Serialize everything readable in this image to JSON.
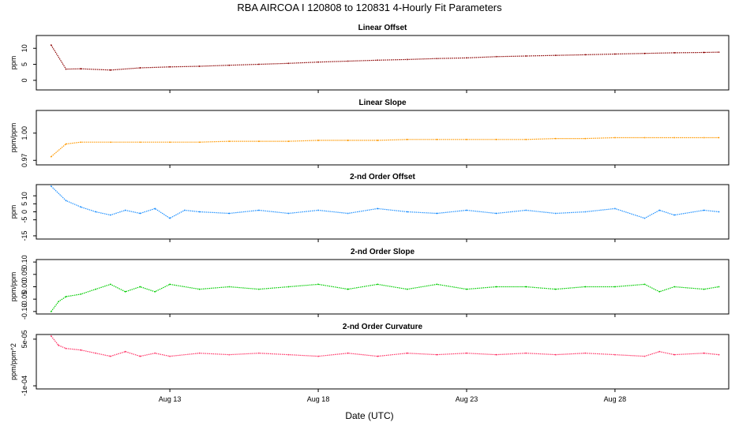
{
  "title": "RBA   AIRCOA I   120808 to 120831   4-Hourly Fit Parameters",
  "xlabel": "Date (UTC)",
  "chart_data": {
    "type": "line",
    "x_axis": {
      "ticks": [
        {
          "date": "2012-08-13",
          "label": "Aug 13"
        },
        {
          "date": "2012-08-18",
          "label": "Aug 18"
        },
        {
          "date": "2012-08-23",
          "label": "Aug 23"
        },
        {
          "date": "2012-08-28",
          "label": "Aug 28"
        }
      ],
      "range": [
        "2012-08-08T12:00",
        "2012-08-31T20:00"
      ]
    },
    "panels": [
      {
        "title": "Linear Offset",
        "ylabel": "ppm",
        "ylim": [
          -3,
          14
        ],
        "yticks": [
          0,
          5,
          10
        ],
        "yticklabels": [
          "0",
          "5",
          "10"
        ],
        "color": "#8b0000",
        "points": [
          [
            "2012-08-09T00:00",
            11.0
          ],
          [
            "2012-08-09T12:00",
            3.5
          ],
          [
            "2012-08-10T00:00",
            3.6
          ],
          [
            "2012-08-11T00:00",
            3.2
          ],
          [
            "2012-08-12T00:00",
            3.9
          ],
          [
            "2012-08-13T00:00",
            4.2
          ],
          [
            "2012-08-14T00:00",
            4.4
          ],
          [
            "2012-08-15T00:00",
            4.7
          ],
          [
            "2012-08-16T00:00",
            5.0
          ],
          [
            "2012-08-17T00:00",
            5.3
          ],
          [
            "2012-08-18T00:00",
            5.7
          ],
          [
            "2012-08-19T00:00",
            6.0
          ],
          [
            "2012-08-20T00:00",
            6.3
          ],
          [
            "2012-08-21T00:00",
            6.5
          ],
          [
            "2012-08-22T00:00",
            6.8
          ],
          [
            "2012-08-23T00:00",
            7.0
          ],
          [
            "2012-08-24T00:00",
            7.4
          ],
          [
            "2012-08-25T00:00",
            7.6
          ],
          [
            "2012-08-26T00:00",
            7.8
          ],
          [
            "2012-08-27T00:00",
            8.0
          ],
          [
            "2012-08-28T00:00",
            8.2
          ],
          [
            "2012-08-29T00:00",
            8.4
          ],
          [
            "2012-08-30T00:00",
            8.6
          ],
          [
            "2012-08-31T00:00",
            8.7
          ],
          [
            "2012-08-31T12:00",
            8.8
          ]
        ]
      },
      {
        "title": "Linear Slope",
        "ylabel": "ppm/ppm",
        "ylim": [
          0.965,
          1.025
        ],
        "yticks": [
          0.97,
          1.0
        ],
        "yticklabels": [
          "0.97",
          "1.00"
        ],
        "color": "#ff9900",
        "points": [
          [
            "2012-08-09T00:00",
            0.974
          ],
          [
            "2012-08-09T12:00",
            0.988
          ],
          [
            "2012-08-10T00:00",
            0.99
          ],
          [
            "2012-08-11T00:00",
            0.99
          ],
          [
            "2012-08-12T00:00",
            0.99
          ],
          [
            "2012-08-13T00:00",
            0.99
          ],
          [
            "2012-08-14T00:00",
            0.99
          ],
          [
            "2012-08-15T00:00",
            0.991
          ],
          [
            "2012-08-16T00:00",
            0.991
          ],
          [
            "2012-08-17T00:00",
            0.991
          ],
          [
            "2012-08-18T00:00",
            0.992
          ],
          [
            "2012-08-19T00:00",
            0.992
          ],
          [
            "2012-08-20T00:00",
            0.992
          ],
          [
            "2012-08-21T00:00",
            0.993
          ],
          [
            "2012-08-22T00:00",
            0.993
          ],
          [
            "2012-08-23T00:00",
            0.993
          ],
          [
            "2012-08-24T00:00",
            0.993
          ],
          [
            "2012-08-25T00:00",
            0.993
          ],
          [
            "2012-08-26T00:00",
            0.994
          ],
          [
            "2012-08-27T00:00",
            0.994
          ],
          [
            "2012-08-28T00:00",
            0.995
          ],
          [
            "2012-08-29T00:00",
            0.995
          ],
          [
            "2012-08-30T00:00",
            0.995
          ],
          [
            "2012-08-31T00:00",
            0.995
          ],
          [
            "2012-08-31T12:00",
            0.995
          ]
        ]
      },
      {
        "title": "2-nd Order Offset",
        "ylabel": "ppm",
        "ylim": [
          -17,
          17
        ],
        "yticks": [
          -15,
          -5,
          0,
          5,
          10
        ],
        "yticklabels": [
          "-15",
          "-5",
          "0",
          "5",
          "10"
        ],
        "color": "#1e90ff",
        "points": [
          [
            "2012-08-09T00:00",
            16.0
          ],
          [
            "2012-08-09T12:00",
            7.0
          ],
          [
            "2012-08-10T00:00",
            3.0
          ],
          [
            "2012-08-10T12:00",
            0.0
          ],
          [
            "2012-08-11T00:00",
            -2.0
          ],
          [
            "2012-08-11T12:00",
            1.0
          ],
          [
            "2012-08-12T00:00",
            -1.0
          ],
          [
            "2012-08-12T12:00",
            2.0
          ],
          [
            "2012-08-13T00:00",
            -4.0
          ],
          [
            "2012-08-13T12:00",
            1.0
          ],
          [
            "2012-08-14T00:00",
            0.0
          ],
          [
            "2012-08-15T00:00",
            -1.0
          ],
          [
            "2012-08-16T00:00",
            1.0
          ],
          [
            "2012-08-17T00:00",
            -1.0
          ],
          [
            "2012-08-18T00:00",
            1.0
          ],
          [
            "2012-08-19T00:00",
            -1.0
          ],
          [
            "2012-08-20T00:00",
            2.0
          ],
          [
            "2012-08-21T00:00",
            0.0
          ],
          [
            "2012-08-22T00:00",
            -1.0
          ],
          [
            "2012-08-23T00:00",
            1.0
          ],
          [
            "2012-08-24T00:00",
            -1.0
          ],
          [
            "2012-08-25T00:00",
            1.0
          ],
          [
            "2012-08-26T00:00",
            -1.0
          ],
          [
            "2012-08-27T00:00",
            0.0
          ],
          [
            "2012-08-28T00:00",
            2.0
          ],
          [
            "2012-08-29T00:00",
            -4.0
          ],
          [
            "2012-08-29T12:00",
            1.0
          ],
          [
            "2012-08-30T00:00",
            -2.0
          ],
          [
            "2012-08-31T00:00",
            1.0
          ],
          [
            "2012-08-31T12:00",
            0.0
          ]
        ]
      },
      {
        "title": "2-nd Order Slope",
        "ylabel": "ppm/ppm",
        "ylim": [
          -0.11,
          0.11
        ],
        "yticks": [
          -0.1,
          -0.05,
          0.0,
          0.05,
          0.1
        ],
        "yticklabels": [
          "-0.10",
          "-0.05",
          "0.00",
          "0.05",
          "0.10"
        ],
        "color": "#00cc00",
        "points": [
          [
            "2012-08-09T00:00",
            -0.1
          ],
          [
            "2012-08-09T06:00",
            -0.06
          ],
          [
            "2012-08-09T12:00",
            -0.04
          ],
          [
            "2012-08-10T00:00",
            -0.03
          ],
          [
            "2012-08-10T12:00",
            -0.01
          ],
          [
            "2012-08-11T00:00",
            0.01
          ],
          [
            "2012-08-11T12:00",
            -0.02
          ],
          [
            "2012-08-12T00:00",
            0.0
          ],
          [
            "2012-08-12T12:00",
            -0.02
          ],
          [
            "2012-08-13T00:00",
            0.01
          ],
          [
            "2012-08-14T00:00",
            -0.01
          ],
          [
            "2012-08-15T00:00",
            0.0
          ],
          [
            "2012-08-16T00:00",
            -0.01
          ],
          [
            "2012-08-17T00:00",
            0.0
          ],
          [
            "2012-08-18T00:00",
            0.01
          ],
          [
            "2012-08-19T00:00",
            -0.01
          ],
          [
            "2012-08-20T00:00",
            0.01
          ],
          [
            "2012-08-21T00:00",
            -0.01
          ],
          [
            "2012-08-22T00:00",
            0.01
          ],
          [
            "2012-08-23T00:00",
            -0.01
          ],
          [
            "2012-08-24T00:00",
            0.0
          ],
          [
            "2012-08-25T00:00",
            0.0
          ],
          [
            "2012-08-26T00:00",
            -0.01
          ],
          [
            "2012-08-27T00:00",
            0.0
          ],
          [
            "2012-08-28T00:00",
            0.0
          ],
          [
            "2012-08-29T00:00",
            0.01
          ],
          [
            "2012-08-29T12:00",
            -0.02
          ],
          [
            "2012-08-30T00:00",
            0.0
          ],
          [
            "2012-08-31T00:00",
            -0.01
          ],
          [
            "2012-08-31T12:00",
            0.0
          ]
        ]
      },
      {
        "title": "2-nd Order Curvature",
        "ylabel": "ppm/ppm^2",
        "ylim": [
          -0.00011,
          6.5e-05
        ],
        "yticks": [
          -0.0001,
          5e-05
        ],
        "yticklabels": [
          "-1e-04",
          "5e-05"
        ],
        "color": "#ff3366",
        "points": [
          [
            "2012-08-09T00:00",
            6e-05
          ],
          [
            "2012-08-09T06:00",
            3e-05
          ],
          [
            "2012-08-09T12:00",
            2e-05
          ],
          [
            "2012-08-10T00:00",
            1.5e-05
          ],
          [
            "2012-08-10T12:00",
            5e-06
          ],
          [
            "2012-08-11T00:00",
            -5e-06
          ],
          [
            "2012-08-11T12:00",
            1e-05
          ],
          [
            "2012-08-12T00:00",
            -5e-06
          ],
          [
            "2012-08-12T12:00",
            5e-06
          ],
          [
            "2012-08-13T00:00",
            -5e-06
          ],
          [
            "2012-08-14T00:00",
            5e-06
          ],
          [
            "2012-08-15T00:00",
            0.0
          ],
          [
            "2012-08-16T00:00",
            5e-06
          ],
          [
            "2012-08-17T00:00",
            0.0
          ],
          [
            "2012-08-18T00:00",
            -5e-06
          ],
          [
            "2012-08-19T00:00",
            5e-06
          ],
          [
            "2012-08-20T00:00",
            -5e-06
          ],
          [
            "2012-08-21T00:00",
            5e-06
          ],
          [
            "2012-08-22T00:00",
            0.0
          ],
          [
            "2012-08-23T00:00",
            5e-06
          ],
          [
            "2012-08-24T00:00",
            0.0
          ],
          [
            "2012-08-25T00:00",
            5e-06
          ],
          [
            "2012-08-26T00:00",
            0.0
          ],
          [
            "2012-08-27T00:00",
            5e-06
          ],
          [
            "2012-08-28T00:00",
            0.0
          ],
          [
            "2012-08-29T00:00",
            -5e-06
          ],
          [
            "2012-08-29T12:00",
            1e-05
          ],
          [
            "2012-08-30T00:00",
            0.0
          ],
          [
            "2012-08-31T00:00",
            5e-06
          ],
          [
            "2012-08-31T12:00",
            0.0
          ]
        ]
      }
    ]
  }
}
